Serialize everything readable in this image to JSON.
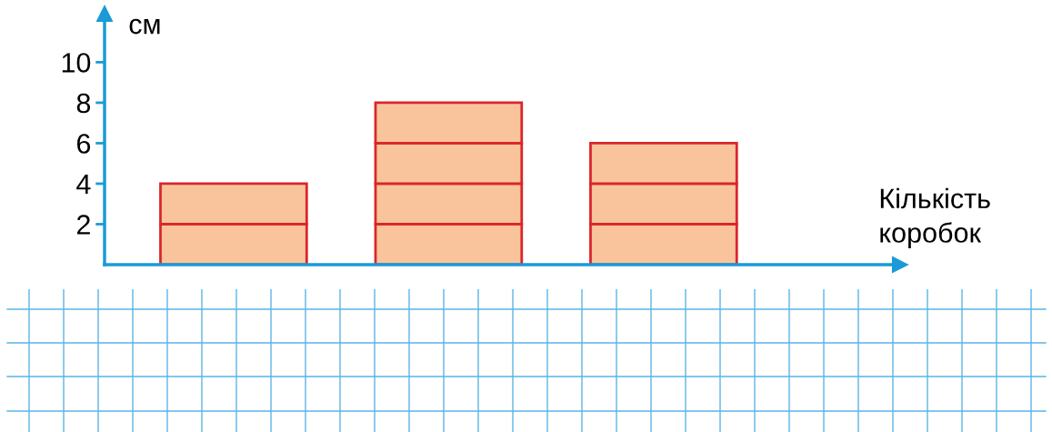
{
  "chart_data": {
    "type": "bar",
    "stacked": true,
    "xlabel": "Кількість коробок",
    "ylabel": "см",
    "categories": [
      null,
      null,
      null
    ],
    "series": [
      {
        "color": "#f9c49c",
        "values": [
          2,
          2,
          2
        ]
      },
      {
        "color": "#f9c49c",
        "values": [
          2,
          2,
          2
        ]
      },
      {
        "color": "#f9c49c",
        "values": [
          null,
          2,
          2
        ]
      },
      {
        "color": "#f9c49c",
        "values": [
          null,
          2,
          null
        ]
      }
    ],
    "ylim": [
      0,
      12.4
    ],
    "yticks": [
      2,
      4,
      6,
      8,
      10
    ],
    "grid": false,
    "legend": false
  }
}
